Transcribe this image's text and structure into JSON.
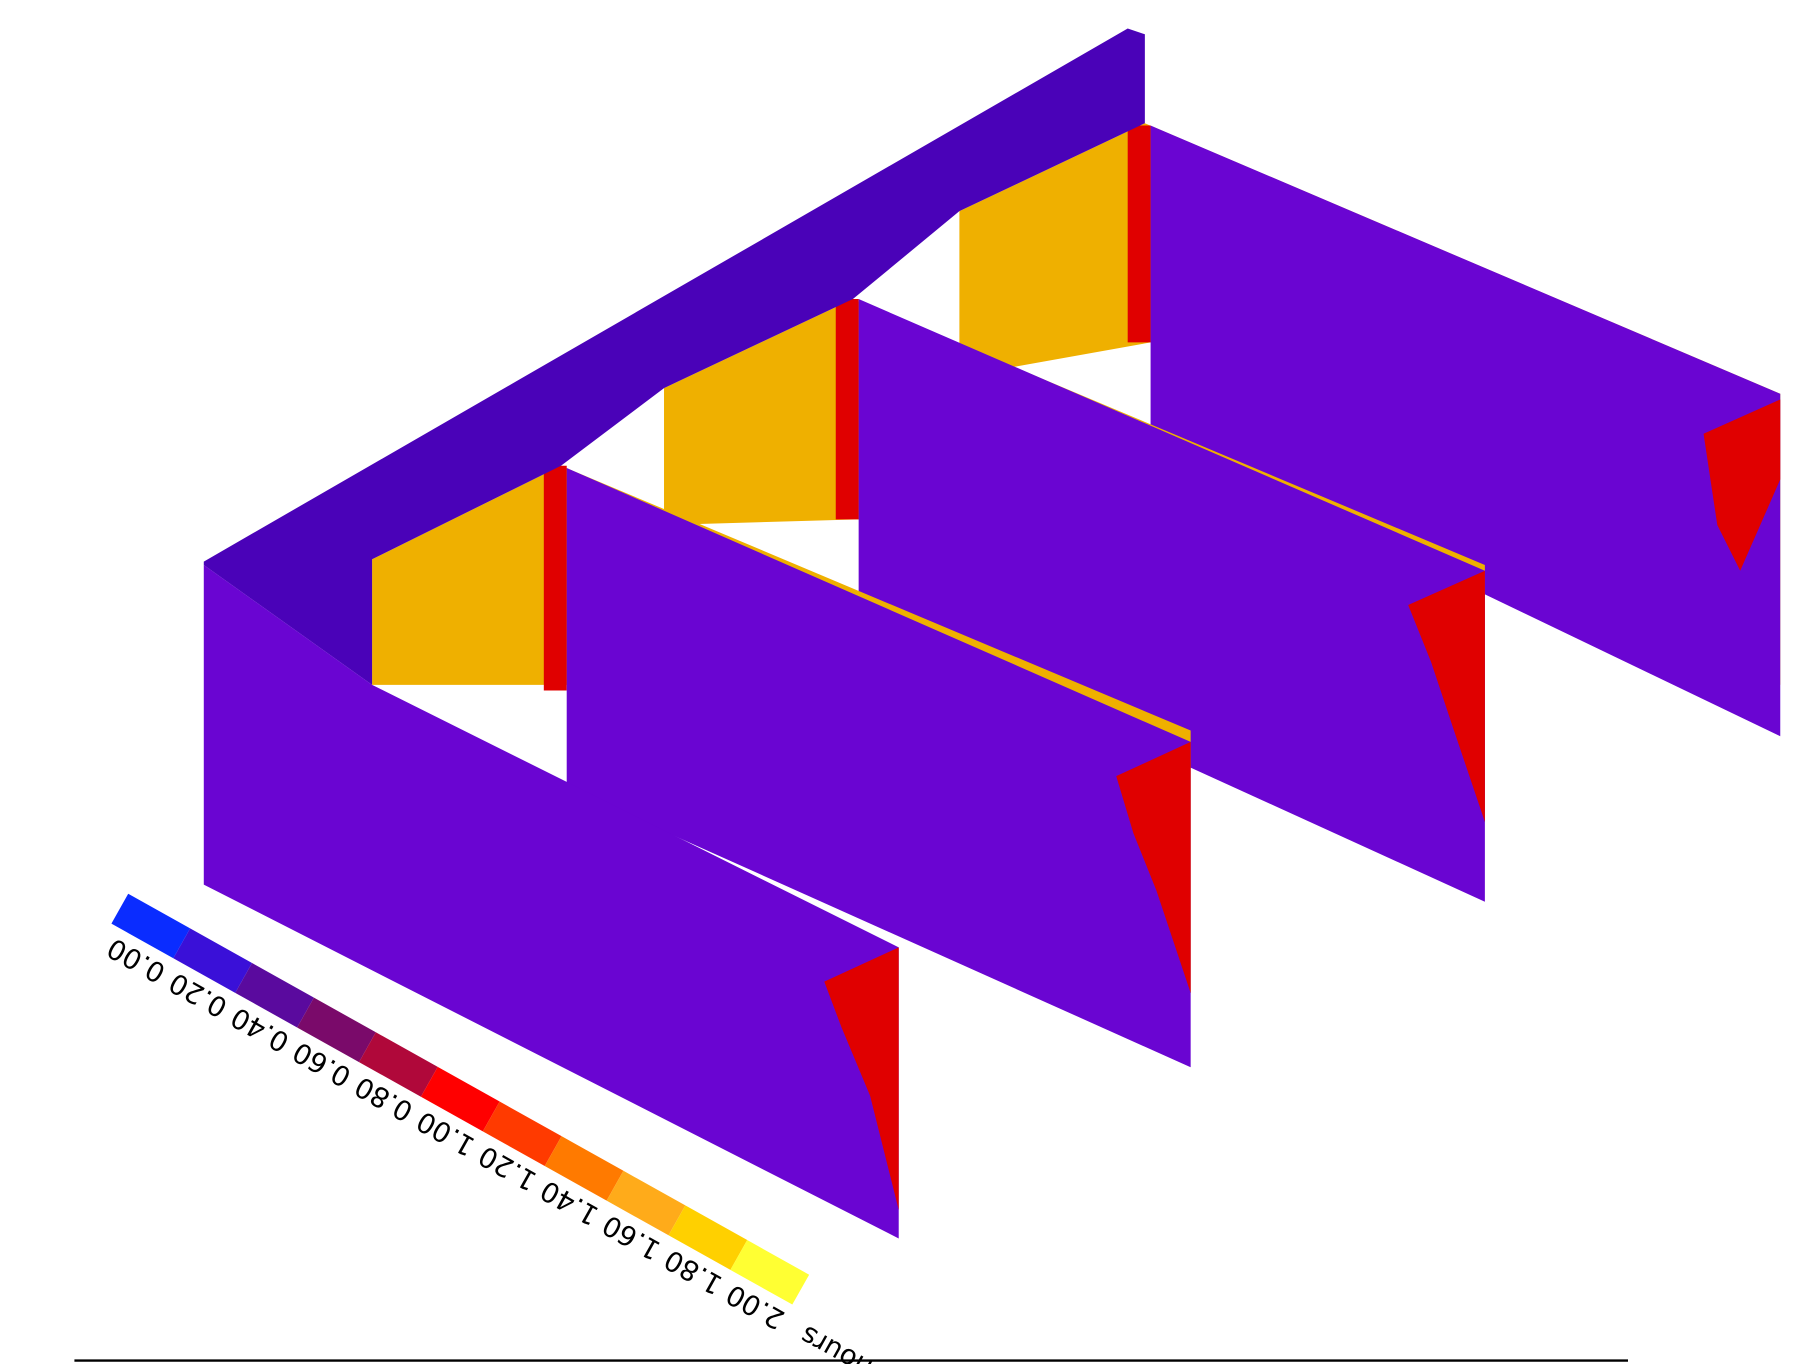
{
  "colorbar": {
    "unit": "hours",
    "ticks": [
      "0.00",
      "0.20",
      "0.40",
      "0.60",
      "0.80",
      "1.00",
      "1.20",
      "1.40",
      "1.60",
      "1.80",
      "2.00"
    ],
    "colors": [
      "#0a2cff",
      "#3a10d8",
      "#5a0a9e",
      "#7a0a6a",
      "#b0083a",
      "#ff0000",
      "#ff3a00",
      "#ff7a00",
      "#ffab1a",
      "#ffd000",
      "#ffff33"
    ]
  }
}
